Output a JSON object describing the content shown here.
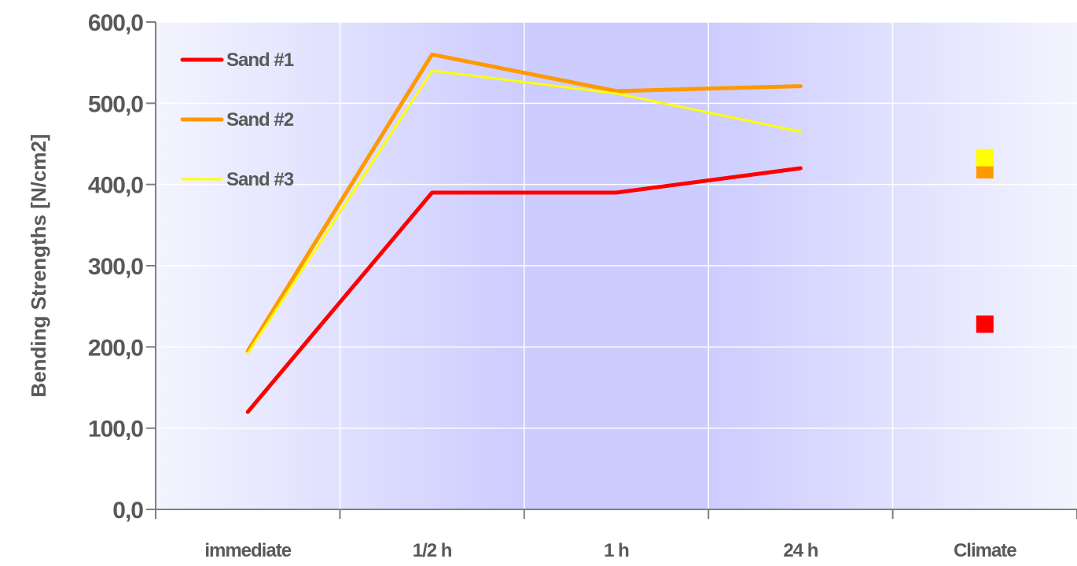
{
  "chart_data": {
    "type": "line",
    "title": "",
    "xlabel": "",
    "ylabel": "Bending Strengths [N/cm2]",
    "categories": [
      "immediate",
      "1/2 h",
      "1 h",
      "24 h",
      "Climate"
    ],
    "ylim": [
      0,
      600
    ],
    "yticks": [
      "0,0",
      "100,0",
      "200,0",
      "300,0",
      "400,0",
      "500,0",
      "600,0"
    ],
    "ytick_values": [
      0,
      100,
      200,
      300,
      400,
      500,
      600
    ],
    "grid": true,
    "legend_position": "top-left",
    "series": [
      {
        "name": "Sand #1",
        "color": "#ff0000",
        "line_values": [
          120,
          390,
          390,
          420,
          null
        ],
        "marker_values": [
          null,
          null,
          null,
          null,
          228
        ]
      },
      {
        "name": "Sand #2",
        "color": "#ff9900",
        "line_values": [
          195,
          560,
          515,
          521,
          null
        ],
        "marker_values": [
          null,
          null,
          null,
          null,
          418
        ]
      },
      {
        "name": "Sand #3",
        "color": "#ffff00",
        "line_values": [
          192,
          540,
          512,
          465,
          null
        ],
        "marker_values": [
          null,
          null,
          null,
          null,
          433
        ]
      }
    ]
  }
}
